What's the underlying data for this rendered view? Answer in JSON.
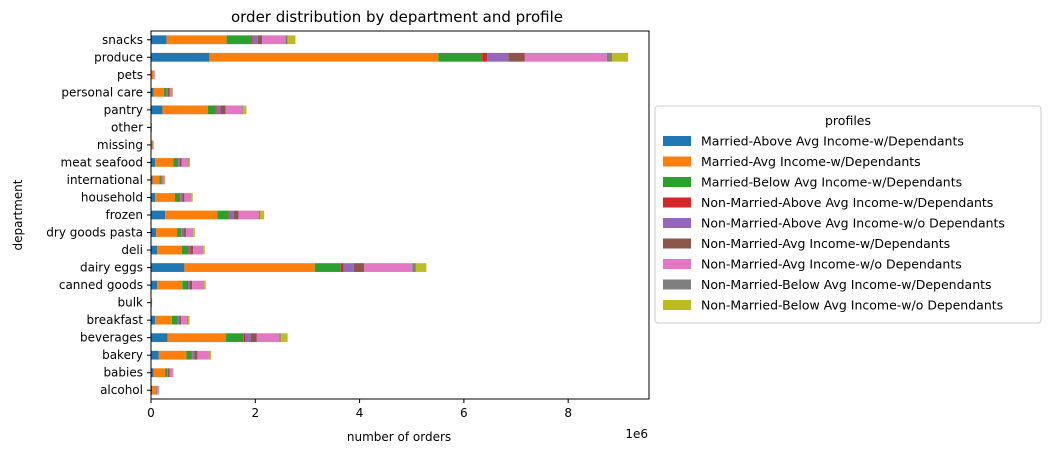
{
  "chart_data": {
    "type": "bar",
    "orientation": "horizontal",
    "stacked": true,
    "title": "order distribution by department and profile",
    "xlabel": "number of orders",
    "ylabel": "department",
    "x_offset_label": "1e6",
    "xlim": [
      0,
      9.55
    ],
    "x_ticks": [
      "0",
      "2",
      "4",
      "6",
      "8"
    ],
    "x_tick_values": [
      0,
      2,
      4,
      6,
      8
    ],
    "grid": false,
    "legend": {
      "title": "profiles",
      "placement": "center-right-outside"
    },
    "categories": [
      "alcohol",
      "babies",
      "bakery",
      "beverages",
      "breakfast",
      "bulk",
      "canned goods",
      "dairy eggs",
      "deli",
      "dry goods pasta",
      "frozen",
      "household",
      "international",
      "meat seafood",
      "missing",
      "other",
      "pantry",
      "personal care",
      "pets",
      "produce",
      "snacks"
    ],
    "series": [
      {
        "name": "Married-Above Avg Income-w/Dependants",
        "color": "#1f77b4",
        "values": [
          0.02,
          0.05,
          0.15,
          0.32,
          0.08,
          0.004,
          0.12,
          0.64,
          0.12,
          0.1,
          0.27,
          0.08,
          0.03,
          0.08,
          0.01,
          0.004,
          0.22,
          0.05,
          0.01,
          1.12,
          0.3
        ]
      },
      {
        "name": "Married-Avg Income-w/Dependants",
        "color": "#ff7f0e",
        "values": [
          0.07,
          0.22,
          0.53,
          1.12,
          0.32,
          0.008,
          0.48,
          2.5,
          0.47,
          0.4,
          1.0,
          0.38,
          0.13,
          0.35,
          0.02,
          0.006,
          0.87,
          0.2,
          0.03,
          4.39,
          1.15
        ]
      },
      {
        "name": "Married-Below Avg Income-w/Dependants",
        "color": "#2ca02c",
        "values": [
          0.01,
          0.04,
          0.1,
          0.34,
          0.1,
          0.002,
          0.1,
          0.5,
          0.12,
          0.08,
          0.22,
          0.1,
          0.03,
          0.08,
          0.005,
          0.002,
          0.15,
          0.05,
          0.005,
          0.84,
          0.47
        ]
      },
      {
        "name": "Non-Married-Above Avg Income-w/Dependants",
        "color": "#d62728",
        "values": [
          0.002,
          0.005,
          0.01,
          0.03,
          0.01,
          0.0005,
          0.01,
          0.05,
          0.01,
          0.01,
          0.02,
          0.01,
          0.003,
          0.01,
          0.001,
          0.0003,
          0.02,
          0.005,
          0.001,
          0.1,
          0.03
        ]
      },
      {
        "name": "Non-Married-Above Avg Income-w/o Dependants",
        "color": "#9467bd",
        "values": [
          0.005,
          0.01,
          0.04,
          0.1,
          0.03,
          0.001,
          0.03,
          0.2,
          0.03,
          0.03,
          0.08,
          0.03,
          0.01,
          0.03,
          0.002,
          0.001,
          0.07,
          0.02,
          0.002,
          0.4,
          0.1
        ]
      },
      {
        "name": "Non-Married-Avg Income-w/Dependants",
        "color": "#8c564b",
        "values": [
          0.01,
          0.03,
          0.06,
          0.12,
          0.04,
          0.001,
          0.05,
          0.2,
          0.06,
          0.05,
          0.09,
          0.04,
          0.015,
          0.04,
          0.003,
          0.001,
          0.1,
          0.03,
          0.003,
          0.32,
          0.08
        ]
      },
      {
        "name": "Non-Married-Avg Income-w/o Dependants",
        "color": "#e377c2",
        "values": [
          0.03,
          0.06,
          0.22,
          0.43,
          0.12,
          0.003,
          0.22,
          0.92,
          0.18,
          0.13,
          0.39,
          0.12,
          0.04,
          0.12,
          0.01,
          0.003,
          0.32,
          0.05,
          0.02,
          1.57,
          0.45
        ]
      },
      {
        "name": "Non-Married-Below Avg Income-w/Dependants",
        "color": "#7f7f7f",
        "values": [
          0.002,
          0.005,
          0.01,
          0.03,
          0.01,
          0.0005,
          0.01,
          0.07,
          0.01,
          0.01,
          0.02,
          0.01,
          0.003,
          0.01,
          0.001,
          0.0003,
          0.02,
          0.005,
          0.001,
          0.1,
          0.04
        ]
      },
      {
        "name": "Non-Married-Below Avg Income-w/o Dependants",
        "color": "#bcbd22",
        "values": [
          0.01,
          0.01,
          0.03,
          0.13,
          0.03,
          0.001,
          0.03,
          0.2,
          0.03,
          0.03,
          0.08,
          0.03,
          0.01,
          0.03,
          0.002,
          0.001,
          0.06,
          0.01,
          0.002,
          0.31,
          0.15
        ]
      }
    ]
  }
}
